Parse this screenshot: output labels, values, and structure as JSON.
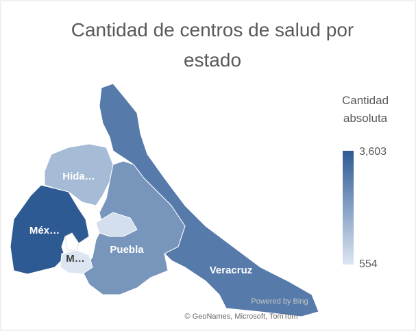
{
  "chart_data": {
    "type": "map",
    "title": "Cantidad de centros de salud por estado",
    "legend_title": "Cantidad absoluta",
    "categories": [
      "Hida…",
      "Méx…",
      "M…",
      "Puebla",
      "Veracruz",
      null
    ],
    "values": [
      1500,
      3603,
      554,
      2300,
      2900,
      700
    ],
    "color_scale": [
      "#dce6f2",
      "#2e5a94"
    ],
    "legend_ticks": [
      554,
      {
        "value": 3603,
        "label": "3,603"
      }
    ],
    "attribution": "© GeoNames, Microsoft, TomTom",
    "powered_by": "Powered by Bing"
  }
}
